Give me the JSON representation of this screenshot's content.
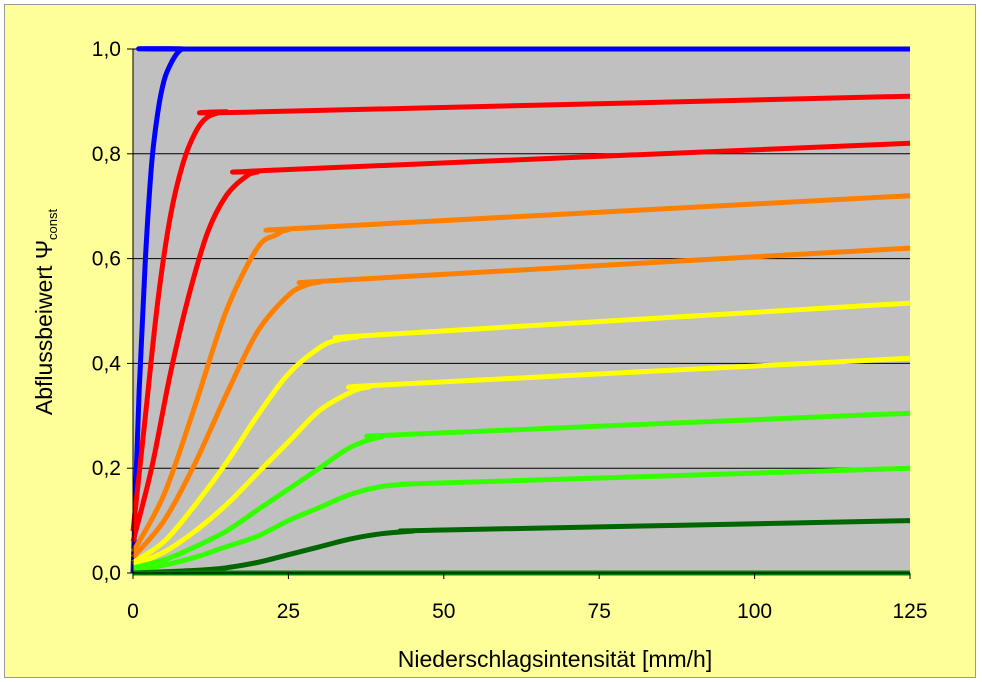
{
  "chart_data": {
    "type": "line",
    "xlabel": "Niederschlagsintensität [mm/h]",
    "ylabel": {
      "main": "Abflussbeiwert ",
      "symbol": "Ψ",
      "subscript": "const"
    },
    "xlim": [
      0,
      125
    ],
    "ylim": [
      0,
      1.0
    ],
    "x_ticks": [
      0,
      25,
      50,
      75,
      100,
      125
    ],
    "y_ticks": [
      0.0,
      0.2,
      0.4,
      0.6,
      0.8,
      1.0
    ],
    "x_tick_labels": [
      "0",
      "25",
      "50",
      "75",
      "100",
      "125"
    ],
    "y_tick_labels": [
      "0,0",
      "0,2",
      "0,4",
      "0,6",
      "0,8",
      "1,0"
    ],
    "grid": "horizontal",
    "plot_background": "#c0c0c0",
    "figure_background": "#ffff99",
    "series": [
      {
        "color": "#0000ff",
        "x": [
          0,
          1,
          2,
          3,
          4,
          5,
          6,
          7,
          8,
          10,
          125
        ],
        "y": [
          0.0,
          0.35,
          0.6,
          0.78,
          0.88,
          0.94,
          0.97,
          0.99,
          1.0,
          1.0,
          1.0
        ]
      },
      {
        "color": "#ff0000",
        "x": [
          0,
          2,
          4,
          6,
          8,
          10,
          12,
          15,
          20,
          125
        ],
        "y": [
          0.08,
          0.3,
          0.52,
          0.68,
          0.78,
          0.84,
          0.87,
          0.88,
          0.88,
          0.91
        ]
      },
      {
        "color": "#ff0000",
        "x": [
          0,
          3,
          6,
          9,
          12,
          15,
          18,
          20,
          25,
          125
        ],
        "y": [
          0.06,
          0.2,
          0.38,
          0.53,
          0.65,
          0.72,
          0.755,
          0.765,
          0.77,
          0.82
        ]
      },
      {
        "color": "#ff7f00",
        "x": [
          0,
          5,
          10,
          15,
          20,
          23,
          25,
          30,
          125
        ],
        "y": [
          0.04,
          0.15,
          0.32,
          0.5,
          0.62,
          0.645,
          0.655,
          0.66,
          0.72
        ]
      },
      {
        "color": "#ff7f00",
        "x": [
          0,
          5,
          10,
          15,
          20,
          25,
          28,
          30,
          35,
          125
        ],
        "y": [
          0.03,
          0.1,
          0.21,
          0.34,
          0.46,
          0.53,
          0.55,
          0.555,
          0.56,
          0.62
        ]
      },
      {
        "color": "#ffff00",
        "x": [
          0,
          5,
          10,
          15,
          20,
          25,
          30,
          33,
          36,
          40,
          125
        ],
        "y": [
          0.02,
          0.06,
          0.13,
          0.21,
          0.3,
          0.38,
          0.43,
          0.445,
          0.45,
          0.455,
          0.515
        ]
      },
      {
        "color": "#ffff00",
        "x": [
          0,
          5,
          10,
          15,
          20,
          25,
          30,
          35,
          38,
          42,
          125
        ],
        "y": [
          0.015,
          0.04,
          0.08,
          0.13,
          0.19,
          0.25,
          0.31,
          0.345,
          0.355,
          0.36,
          0.41
        ]
      },
      {
        "color": "#33ff00",
        "x": [
          0,
          5,
          10,
          15,
          20,
          25,
          30,
          35,
          40,
          45,
          125
        ],
        "y": [
          0.01,
          0.025,
          0.05,
          0.08,
          0.12,
          0.16,
          0.2,
          0.24,
          0.26,
          0.265,
          0.305
        ]
      },
      {
        "color": "#33ff00",
        "x": [
          0,
          5,
          10,
          15,
          20,
          25,
          30,
          35,
          40,
          45,
          50,
          125
        ],
        "y": [
          0.005,
          0.015,
          0.03,
          0.05,
          0.07,
          0.1,
          0.125,
          0.15,
          0.165,
          0.17,
          0.172,
          0.2
        ]
      },
      {
        "color": "#006600",
        "x": [
          0,
          10,
          15,
          20,
          25,
          30,
          35,
          40,
          45,
          50,
          125
        ],
        "y": [
          0.0,
          0.005,
          0.01,
          0.02,
          0.035,
          0.05,
          0.065,
          0.075,
          0.08,
          0.082,
          0.1
        ]
      },
      {
        "color": "#008000",
        "x": [
          0,
          125
        ],
        "y": [
          0.0,
          0.0
        ]
      }
    ]
  }
}
